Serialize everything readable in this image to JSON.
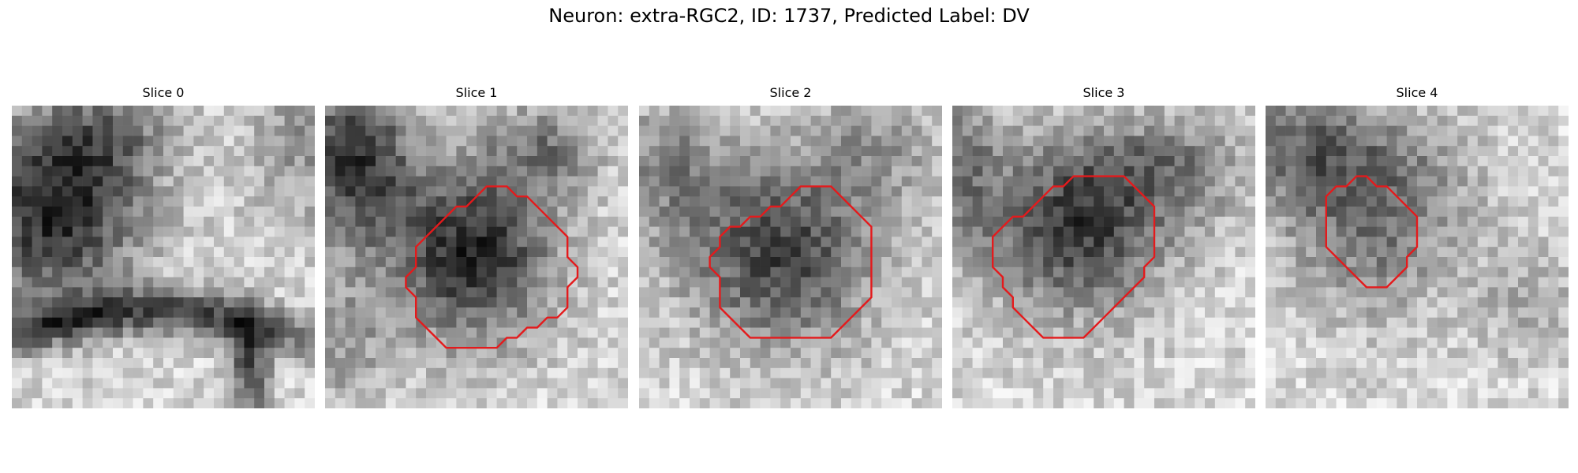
{
  "title": "Neuron: extra-RGC2, ID: 1737, Predicted Label: DV",
  "contour_color": "#e41a1c",
  "slices": [
    {
      "label": "Slice 0"
    },
    {
      "label": "Slice 1"
    },
    {
      "label": "Slice 2"
    },
    {
      "label": "Slice 3"
    },
    {
      "label": "Slice 4"
    }
  ]
}
